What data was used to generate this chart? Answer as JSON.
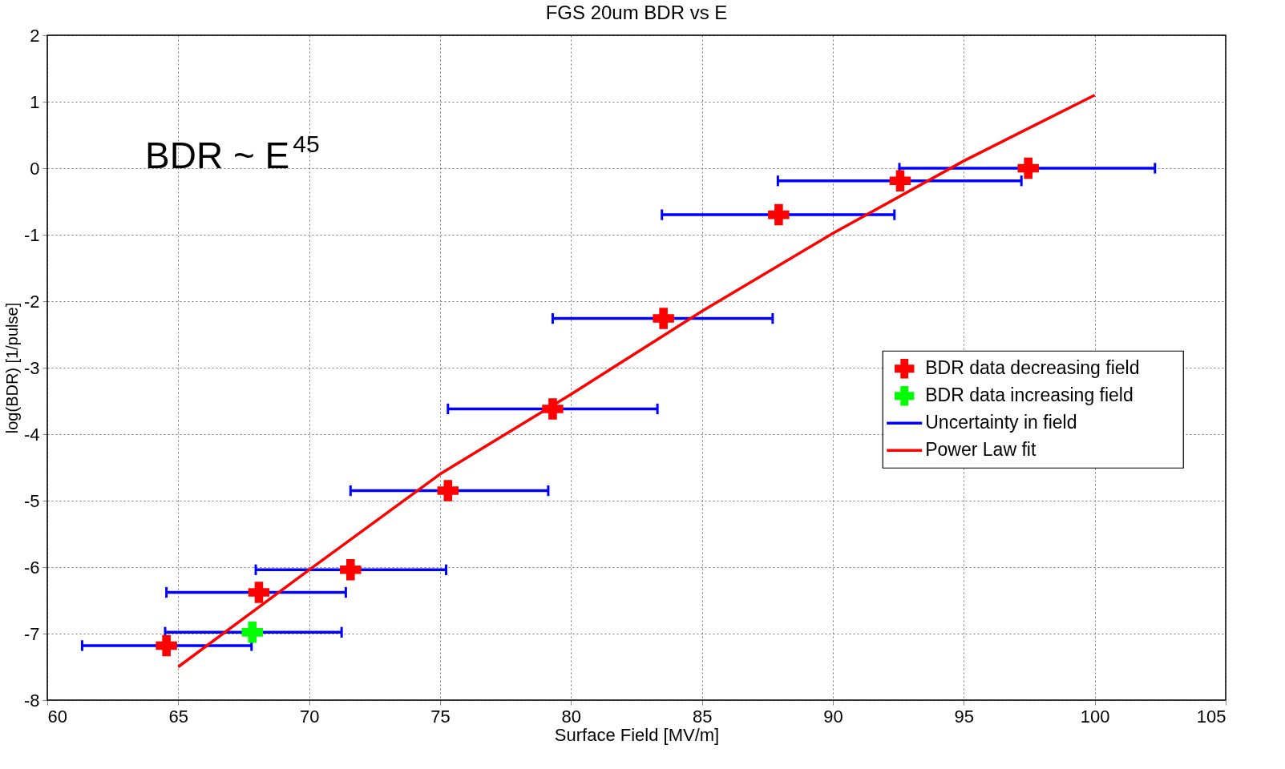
{
  "chart_data": {
    "type": "scatter",
    "title": "FGS 20um BDR vs E",
    "xlabel": "Surface Field [MV/m]",
    "ylabel": "log(BDR) [1/pulse]",
    "xlim": [
      60,
      105
    ],
    "xticks": [
      60,
      65,
      70,
      75,
      80,
      85,
      90,
      95,
      100,
      105
    ],
    "ylim": [
      -8,
      2
    ],
    "yticks": [
      -8,
      -7,
      -6,
      -5,
      -4,
      -3,
      -2,
      -1,
      0,
      1,
      2
    ],
    "grid": true,
    "legend": "right",
    "marker": "cross",
    "annotations": [
      "BDR ~ E$^{45}$"
    ],
    "series": [
      {
        "name": "BDR data decreasing field",
        "color": "#ff0000",
        "x": [
          64.55,
          68.08,
          71.58,
          75.3,
          79.3,
          83.53,
          87.93,
          92.57,
          97.46
        ],
        "values": [
          -7.18,
          -6.38,
          -6.04,
          -4.85,
          -3.62,
          -2.26,
          -0.7,
          -0.19,
          0.0
        ],
        "xerrors": [
          [
            61.33,
            67.8
          ],
          [
            64.55,
            71.4
          ],
          [
            67.96,
            75.23
          ],
          [
            71.58,
            79.13
          ],
          [
            75.3,
            83.3
          ],
          [
            79.3,
            87.7
          ],
          [
            83.47,
            92.35
          ],
          [
            87.9,
            97.2
          ],
          [
            92.54,
            102.3
          ]
        ]
      },
      {
        "name": "BDR data increasing field",
        "color": "#00ff00",
        "x": [
          67.83
        ],
        "values": [
          -6.98
        ],
        "xerrors": [
          [
            64.5,
            71.24
          ]
        ]
      },
      {
        "name": "Uncertainty in field",
        "type": "line",
        "color": "#0000ff"
      },
      {
        "name": "Power Law fit",
        "type": "line",
        "marker": "none",
        "color": "#ff0000",
        "x": [
          65,
          70,
          75,
          80,
          85,
          90,
          95,
          100
        ],
        "values": [
          -7.5,
          -6.04,
          -4.6,
          -3.4,
          -2.15,
          -0.98,
          0.11,
          1.1
        ]
      }
    ]
  }
}
